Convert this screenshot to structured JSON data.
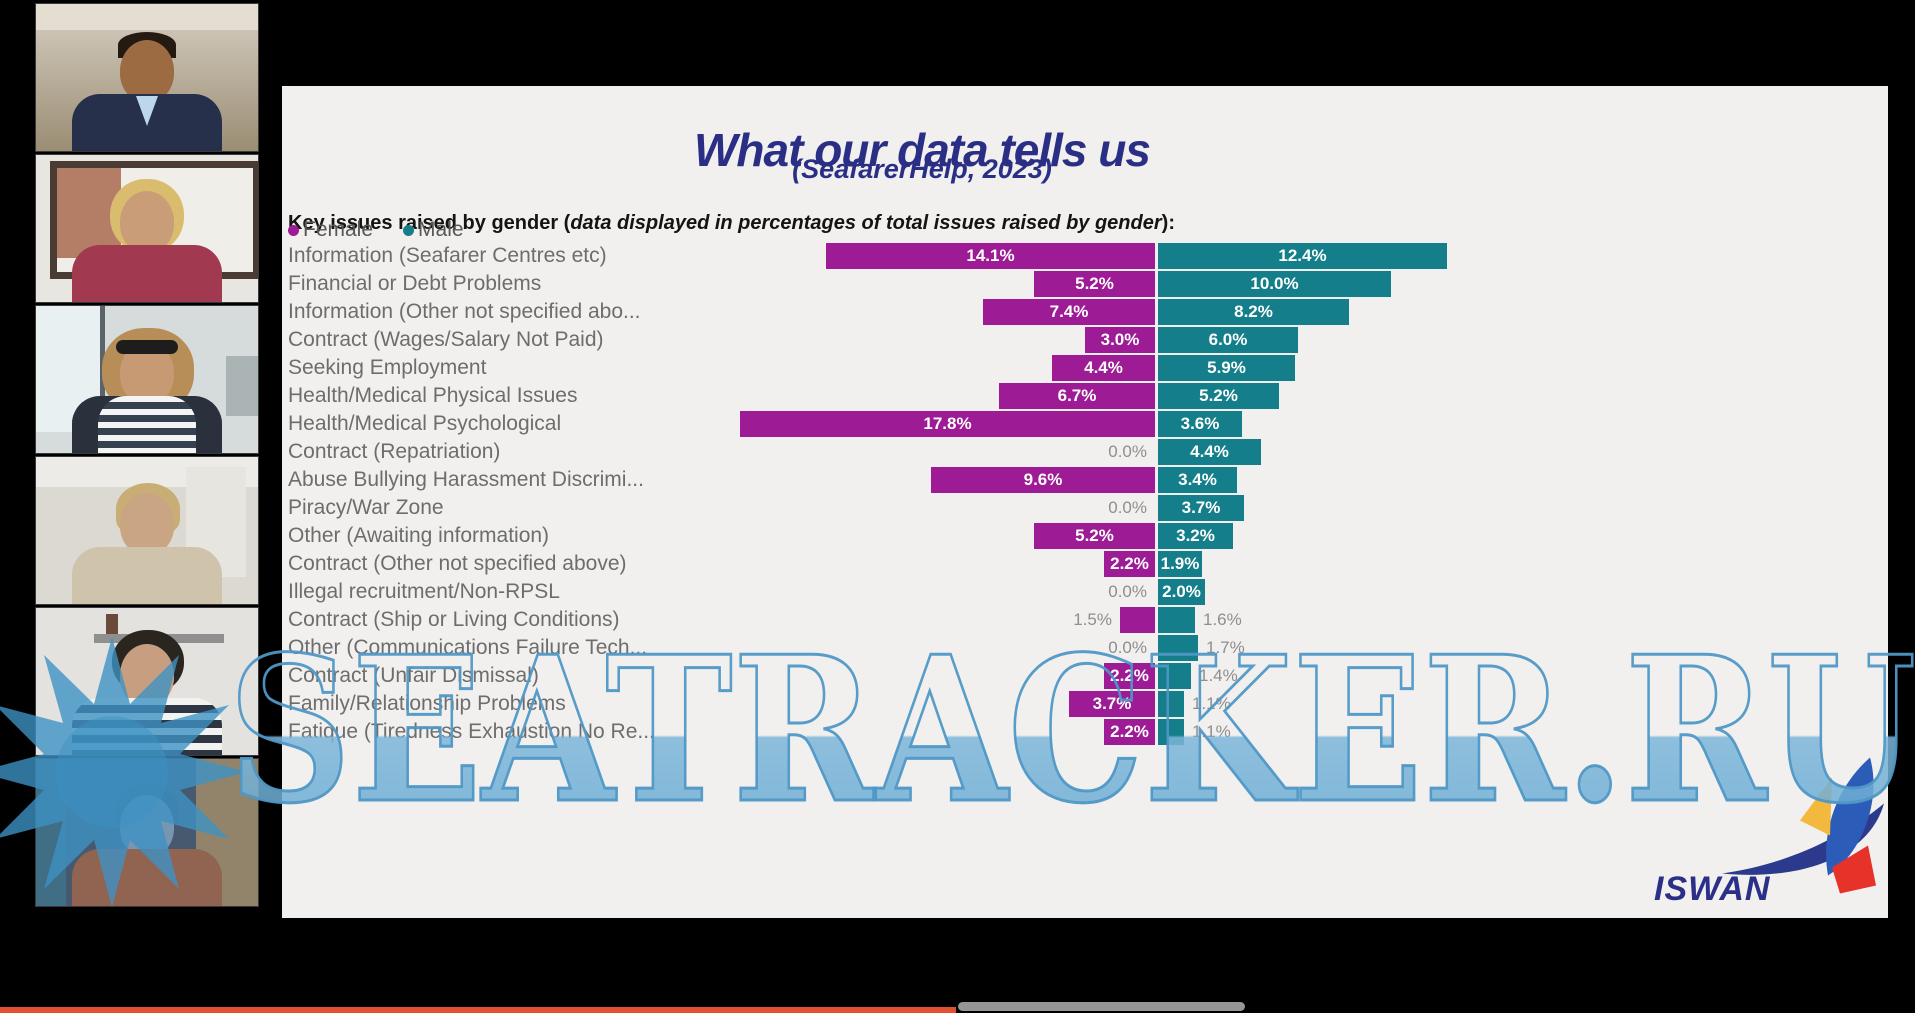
{
  "meeting": {
    "participants": [
      {
        "description": "Man in a navy suit and light blue shirt"
      },
      {
        "description": "Blonde woman in a maroon shirt by a window"
      },
      {
        "description": "Woman with curly hair wearing a headset"
      },
      {
        "description": "Blonde woman in a beige cardigan"
      },
      {
        "description": "Dark-haired woman in a navy striped top"
      },
      {
        "description": "Woman in an orange top in a dim room"
      }
    ]
  },
  "slide": {
    "title": "What our data tells us",
    "subtitle": "(SeafarerHelp, 2023)",
    "intro": {
      "plain_start": "Key issues raised by gender (",
      "italic": "data displayed in percentages of total issues raised by gender",
      "plain_end": "):"
    },
    "logo_text": "ISWAN"
  },
  "chart_data": {
    "type": "bar",
    "orientation": "diverging-horizontal",
    "title": "Key issues raised by gender (SeafarerHelp, 2023)",
    "value_format": "percent, one decimal",
    "legend_position": "top-left",
    "categories": [
      "Information (Seafarer Centres etc)",
      "Financial or Debt Problems",
      "Information (Other not specified abo...",
      "Contract (Wages/Salary Not Paid)",
      "Seeking Employment",
      "Health/Medical Physical Issues",
      "Health/Medical Psychological",
      "Contract (Repatriation)",
      "Abuse Bullying Harassment Discrimi...",
      "Piracy/War Zone",
      "Other (Awaiting information)",
      "Contract (Other not specified above)",
      "Illegal recruitment/Non-RPSL",
      "Contract (Ship or Living Conditions)",
      "Other (Communications Failure Tech...",
      "Contract (Unfair Dismissal)",
      "Family/Relationship Problems",
      "Fatique (Tiredness Exhaustion No Re..."
    ],
    "series": [
      {
        "name": "Female",
        "color": "#9e1b96",
        "values": [
          14.1,
          5.2,
          7.4,
          3.0,
          4.4,
          6.7,
          17.8,
          0.0,
          9.6,
          0.0,
          5.2,
          2.2,
          0.0,
          1.5,
          0.0,
          2.2,
          3.7,
          2.2
        ]
      },
      {
        "name": "Male",
        "color": "#147e8a",
        "values": [
          12.4,
          10.0,
          8.2,
          6.0,
          5.9,
          5.2,
          3.6,
          4.4,
          3.4,
          3.7,
          3.2,
          1.9,
          2.0,
          1.6,
          1.7,
          1.4,
          1.1,
          1.1
        ]
      }
    ]
  },
  "watermark": {
    "text": "SEATRACKER.RU"
  },
  "colors": {
    "slide_background": "#f1f0ee",
    "title_navy": "#2b2e85",
    "female_purple": "#9e1b96",
    "male_teal": "#147e8a",
    "watermark_blue": "#5697c4"
  }
}
